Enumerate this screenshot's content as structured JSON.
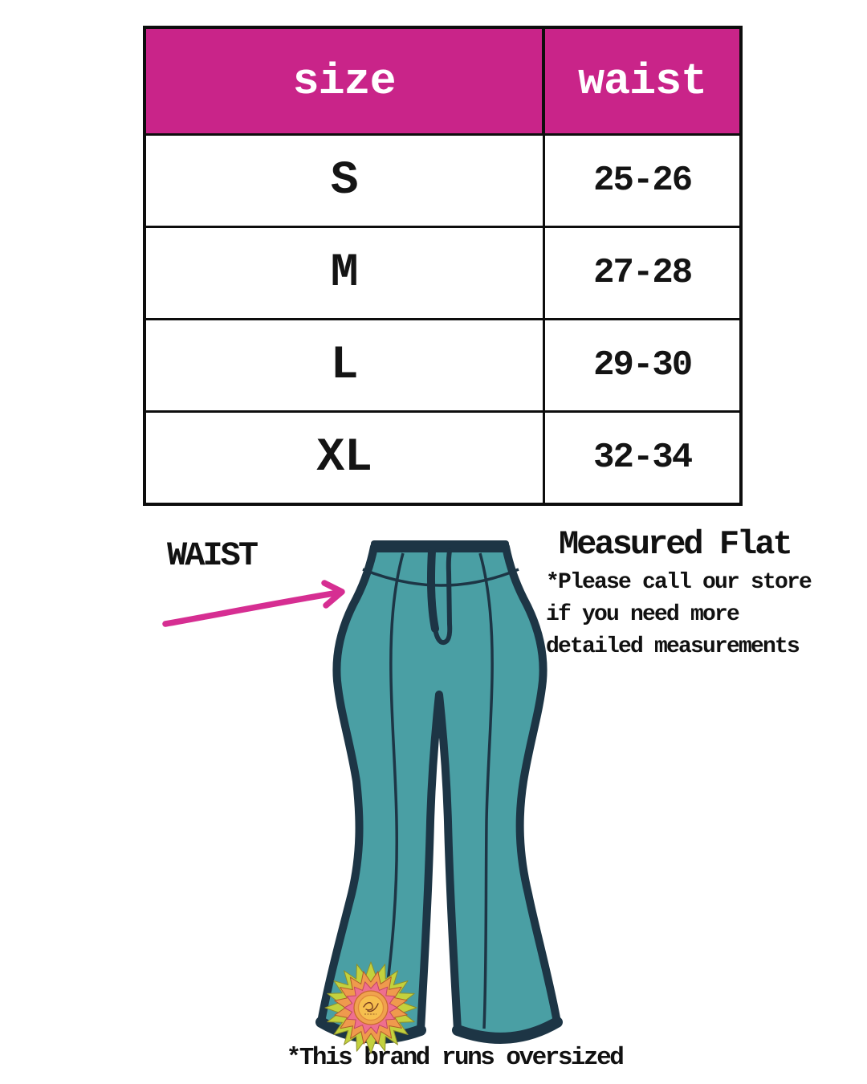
{
  "size_chart": {
    "columns": [
      "size",
      "waist"
    ],
    "rows": [
      {
        "size": "S",
        "waist": "25-26"
      },
      {
        "size": "M",
        "waist": "27-28"
      },
      {
        "size": "L",
        "waist": "29-30"
      },
      {
        "size": "XL",
        "waist": "32-34"
      }
    ]
  },
  "annotations": {
    "waist_label": "WAIST",
    "measured_flat_title": "Measured Flat",
    "store_note_lines": [
      "*Please call our store",
      "if you need more",
      "detailed measurements"
    ],
    "oversized_note": "*This brand runs oversized"
  },
  "colors": {
    "header_pink": "#c92489",
    "arrow_pink": "#d62e92",
    "pants_teal": "#4a9fa4",
    "outline_navy": "#1d3545",
    "table_border": "#0d0d0d",
    "text_black": "#1a1a1a"
  },
  "logo": {
    "name": "sun-mandala-brand-logo",
    "star_layers": [
      {
        "points": 20,
        "outer_r": 57,
        "inner_r": 40,
        "rotate_deg": 0,
        "fill": "#c3d13d",
        "stroke": "#8e8f2b"
      },
      {
        "points": 16,
        "outer_r": 46,
        "inner_r": 32,
        "rotate_deg": 11,
        "fill": "#ef9a4d",
        "stroke": "#b05c2a"
      },
      {
        "points": 14,
        "outer_r": 33,
        "inner_r": 24,
        "rotate_deg": 0,
        "fill": "#ee6f8f",
        "stroke": "#c14664"
      }
    ],
    "circles": [
      {
        "r": 21,
        "fill": "#f0a24e",
        "stroke": "#c96a2e"
      },
      {
        "r": 15.5,
        "fill": "#f6bf4e",
        "stroke": "#e0893b"
      }
    ]
  }
}
